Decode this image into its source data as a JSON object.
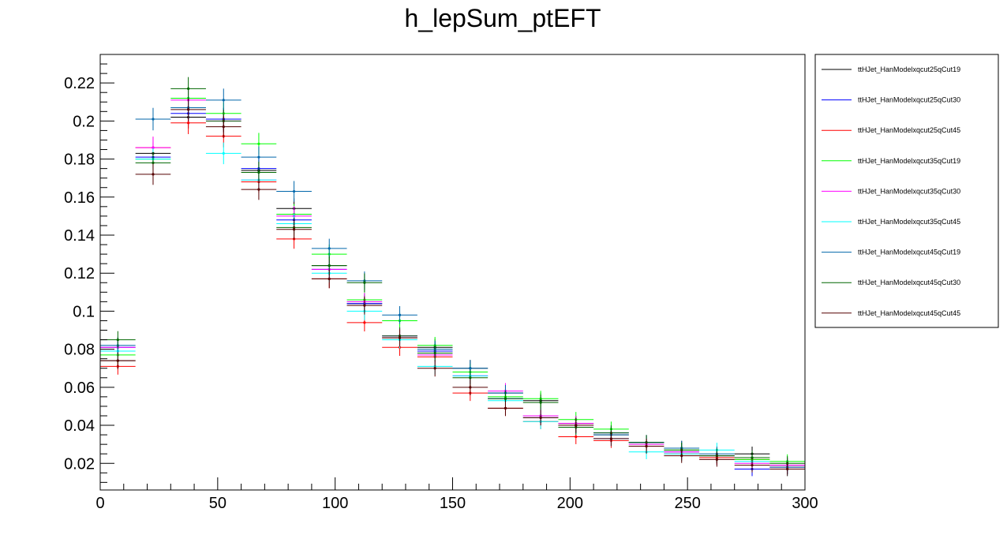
{
  "chart_data": {
    "type": "line",
    "title": "h_lepSum_ptEFT",
    "xlabel": "",
    "ylabel": "",
    "xlim": [
      0,
      300
    ],
    "ylim": [
      0.006,
      0.235
    ],
    "xticks": [
      "0",
      "50",
      "100",
      "150",
      "200",
      "250",
      "300"
    ],
    "yticks": [
      "0.02",
      "0.04",
      "0.06",
      "0.08",
      "0.1",
      "0.12",
      "0.14",
      "0.16",
      "0.18",
      "0.2",
      "0.22"
    ],
    "grid": false,
    "legend_position": "right",
    "bin_edges": [
      0,
      15,
      30,
      45,
      60,
      75,
      90,
      105,
      120,
      135,
      150,
      165,
      180,
      195,
      210,
      225,
      240,
      255,
      270,
      285,
      300
    ],
    "series": [
      {
        "name": "ttHJet_HanModelxqcut25qCut19",
        "color": "#000000",
        "values": [
          0.074,
          0.183,
          0.202,
          0.201,
          0.174,
          0.154,
          0.124,
          0.104,
          0.086,
          0.081,
          0.07,
          0.057,
          0.053,
          0.041,
          0.035,
          0.031,
          0.028,
          0.024,
          0.025,
          0.019
        ]
      },
      {
        "name": "ttHJet_HanModelxqcut25qCut30",
        "color": "#0000ff",
        "values": [
          0.081,
          0.181,
          0.204,
          0.201,
          0.175,
          0.148,
          0.122,
          0.104,
          0.087,
          0.079,
          0.066,
          0.054,
          0.045,
          0.04,
          0.036,
          0.031,
          0.026,
          0.023,
          0.017,
          0.018
        ]
      },
      {
        "name": "ttHJet_HanModelxqcut25qCut45",
        "color": "#ff0000",
        "values": [
          0.071,
          0.186,
          0.199,
          0.192,
          0.168,
          0.138,
          0.117,
          0.094,
          0.081,
          0.076,
          0.057,
          0.049,
          0.042,
          0.034,
          0.032,
          0.029,
          0.025,
          0.023,
          0.022,
          0.018
        ]
      },
      {
        "name": "ttHJet_HanModelxqcut35qCut19",
        "color": "#00ff00",
        "values": [
          0.077,
          0.18,
          0.212,
          0.204,
          0.188,
          0.151,
          0.13,
          0.106,
          0.095,
          0.082,
          0.068,
          0.055,
          0.054,
          0.043,
          0.038,
          0.029,
          0.027,
          0.024,
          0.022,
          0.021
        ]
      },
      {
        "name": "ttHJet_HanModelxqcut35qCut30",
        "color": "#ff00ff",
        "values": [
          0.081,
          0.186,
          0.211,
          0.2,
          0.169,
          0.15,
          0.122,
          0.105,
          0.087,
          0.077,
          0.066,
          0.058,
          0.045,
          0.041,
          0.033,
          0.03,
          0.026,
          0.024,
          0.02,
          0.019
        ]
      },
      {
        "name": "ttHJet_HanModelxqcut35qCut45",
        "color": "#00ffff",
        "values": [
          0.079,
          0.18,
          0.207,
          0.183,
          0.169,
          0.146,
          0.12,
          0.1,
          0.085,
          0.071,
          0.066,
          0.053,
          0.042,
          0.039,
          0.033,
          0.026,
          0.025,
          0.027,
          0.021,
          0.017
        ]
      },
      {
        "name": "ttHJet_HanModelxqcut45qCut19",
        "color": "#0066aa",
        "values": [
          0.082,
          0.201,
          0.207,
          0.211,
          0.181,
          0.163,
          0.133,
          0.116,
          0.098,
          0.08,
          0.07,
          0.057,
          0.044,
          0.04,
          0.035,
          0.031,
          0.028,
          0.025,
          0.023,
          0.018
        ]
      },
      {
        "name": "ttHJet_HanModelxqcut45qCut30",
        "color": "#006600",
        "values": [
          0.085,
          0.178,
          0.217,
          0.2,
          0.173,
          0.144,
          0.124,
          0.115,
          0.087,
          0.078,
          0.065,
          0.054,
          0.052,
          0.039,
          0.036,
          0.031,
          0.027,
          0.024,
          0.023,
          0.02
        ]
      },
      {
        "name": "ttHJet_HanModelxqcut45qCut45",
        "color": "#550000",
        "values": [
          0.074,
          0.172,
          0.206,
          0.197,
          0.164,
          0.143,
          0.117,
          0.103,
          0.086,
          0.07,
          0.06,
          0.049,
          0.044,
          0.04,
          0.033,
          0.029,
          0.024,
          0.022,
          0.019,
          0.017
        ]
      }
    ]
  }
}
